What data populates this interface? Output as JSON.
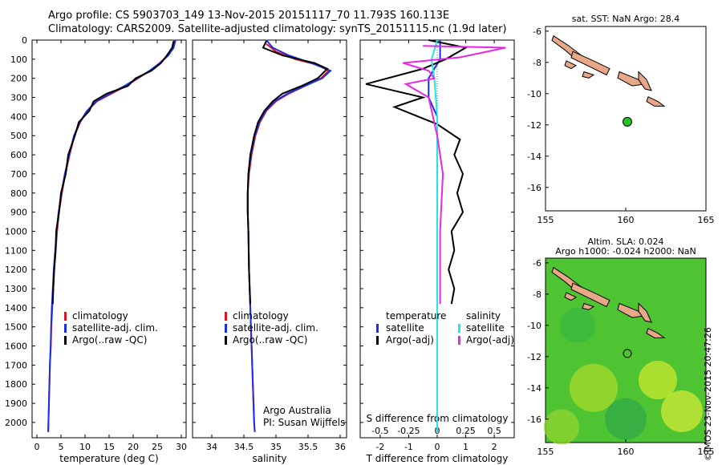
{
  "header": {
    "line1": "Argo profile: CS 5903703_149 13-Nov-2015 20151117_70 11.793S 160.113E",
    "line2": "Climatology: CARS2009. Satellite-adjusted climatology: synTS_20151115.nc (1.9d later)"
  },
  "credit": "©IMOS 23-Nov-2015 20:47:26",
  "colors": {
    "climatology": "#e0141e",
    "satellite": "#1a2ee6",
    "argo": "#000000",
    "sal_sat": "#22e6e6",
    "sal_argo": "#e628e6",
    "land": "#e8a888",
    "float": "#22c322"
  },
  "chart_data": [
    {
      "id": "temperature",
      "type": "line",
      "xlabel": "temperature (deg C)",
      "ylabel": "",
      "xlim": [
        -1,
        31
      ],
      "ylim": [
        2080,
        0
      ],
      "xticks": [
        0,
        5,
        10,
        15,
        20,
        25,
        30
      ],
      "yticks": [
        0,
        100,
        200,
        300,
        400,
        500,
        600,
        700,
        800,
        900,
        1000,
        1100,
        1200,
        1300,
        1400,
        1500,
        1600,
        1700,
        1800,
        1900,
        2000
      ],
      "legend": [
        "climatology",
        "satellite-adj. clim.",
        "Argo(..raw -QC)"
      ],
      "series": [
        {
          "name": "climatology",
          "color": "#e0141e",
          "points": [
            [
              28.6,
              0
            ],
            [
              28.3,
              40
            ],
            [
              27.2,
              80
            ],
            [
              25.5,
              120
            ],
            [
              23.5,
              160
            ],
            [
              21.0,
              200
            ],
            [
              18.5,
              240
            ],
            [
              15.5,
              280
            ],
            [
              12.5,
              320
            ],
            [
              10.5,
              370
            ],
            [
              9.0,
              430
            ],
            [
              7.8,
              500
            ],
            [
              6.8,
              600
            ],
            [
              5.9,
              700
            ],
            [
              5.2,
              800
            ],
            [
              4.6,
              900
            ],
            [
              4.2,
              1000
            ],
            [
              3.9,
              1100
            ],
            [
              3.6,
              1200
            ],
            [
              3.4,
              1300
            ],
            [
              3.2,
              1400
            ],
            [
              3.0,
              1500
            ],
            [
              2.9,
              1600
            ],
            [
              2.7,
              1700
            ],
            [
              2.6,
              1800
            ],
            [
              2.5,
              1900
            ],
            [
              2.4,
              2000
            ],
            [
              2.35,
              2050
            ]
          ]
        },
        {
          "name": "satellite-adj. clim.",
          "color": "#1a2ee6",
          "points": [
            [
              28.8,
              0
            ],
            [
              28.4,
              40
            ],
            [
              27.3,
              80
            ],
            [
              25.6,
              120
            ],
            [
              23.4,
              160
            ],
            [
              20.8,
              200
            ],
            [
              18.2,
              240
            ],
            [
              15.2,
              280
            ],
            [
              12.3,
              320
            ],
            [
              10.4,
              370
            ],
            [
              8.9,
              430
            ],
            [
              7.7,
              500
            ],
            [
              6.7,
              600
            ],
            [
              5.8,
              700
            ],
            [
              5.1,
              800
            ],
            [
              4.5,
              900
            ],
            [
              4.1,
              1000
            ],
            [
              3.8,
              1100
            ],
            [
              3.5,
              1200
            ],
            [
              3.3,
              1300
            ],
            [
              3.1,
              1400
            ],
            [
              2.95,
              1500
            ],
            [
              2.85,
              1600
            ],
            [
              2.7,
              1700
            ],
            [
              2.6,
              1800
            ],
            [
              2.5,
              1900
            ],
            [
              2.4,
              2000
            ],
            [
              2.35,
              2050
            ]
          ]
        },
        {
          "name": "Argo(..raw -QC)",
          "color": "#000000",
          "points": [
            [
              28.4,
              5
            ],
            [
              28.1,
              40
            ],
            [
              27.0,
              80
            ],
            [
              25.8,
              120
            ],
            [
              23.8,
              160
            ],
            [
              20.5,
              200
            ],
            [
              18.9,
              240
            ],
            [
              14.5,
              280
            ],
            [
              11.8,
              320
            ],
            [
              10.9,
              370
            ],
            [
              8.7,
              430
            ],
            [
              7.9,
              500
            ],
            [
              6.5,
              600
            ],
            [
              6.0,
              700
            ],
            [
              5.0,
              800
            ],
            [
              4.6,
              900
            ],
            [
              4.0,
              1000
            ],
            [
              3.9,
              1100
            ],
            [
              3.6,
              1200
            ],
            [
              3.4,
              1300
            ],
            [
              3.3,
              1380
            ]
          ]
        }
      ]
    },
    {
      "id": "salinity",
      "type": "line",
      "xlabel": "salinity",
      "ylabel": "",
      "xlim": [
        33.7,
        36.1
      ],
      "ylim": [
        2080,
        0
      ],
      "xticks": [
        34,
        34.5,
        35,
        35.5,
        36
      ],
      "legend": [
        "climatology",
        "satellite-adj. clim.",
        "Argo(..raw -QC)"
      ],
      "annotation": [
        "Argo Australia",
        "PI: Susan Wijffels"
      ],
      "series": [
        {
          "name": "climatology",
          "color": "#e0141e",
          "points": [
            [
              34.85,
              20
            ],
            [
              35.0,
              60
            ],
            [
              35.3,
              100
            ],
            [
              35.65,
              130
            ],
            [
              35.82,
              160
            ],
            [
              35.7,
              200
            ],
            [
              35.45,
              240
            ],
            [
              35.2,
              280
            ],
            [
              35.0,
              320
            ],
            [
              34.85,
              370
            ],
            [
              34.75,
              430
            ],
            [
              34.68,
              500
            ],
            [
              34.62,
              600
            ],
            [
              34.58,
              700
            ],
            [
              34.56,
              800
            ],
            [
              34.56,
              900
            ],
            [
              34.57,
              1000
            ],
            [
              34.58,
              1200
            ],
            [
              34.6,
              1400
            ],
            [
              34.62,
              1600
            ],
            [
              34.64,
              1800
            ],
            [
              34.66,
              2000
            ],
            [
              34.67,
              2050
            ]
          ]
        },
        {
          "name": "satellite-adj. clim.",
          "color": "#1a2ee6",
          "points": [
            [
              34.85,
              0
            ],
            [
              34.95,
              40
            ],
            [
              35.2,
              80
            ],
            [
              35.55,
              120
            ],
            [
              35.85,
              160
            ],
            [
              35.72,
              200
            ],
            [
              35.45,
              240
            ],
            [
              35.18,
              280
            ],
            [
              34.98,
              320
            ],
            [
              34.84,
              370
            ],
            [
              34.74,
              430
            ],
            [
              34.67,
              500
            ],
            [
              34.61,
              600
            ],
            [
              34.57,
              700
            ],
            [
              34.56,
              800
            ],
            [
              34.56,
              900
            ],
            [
              34.57,
              1000
            ],
            [
              34.58,
              1200
            ],
            [
              34.6,
              1400
            ],
            [
              34.62,
              1600
            ],
            [
              34.64,
              1800
            ],
            [
              34.66,
              2000
            ],
            [
              34.67,
              2050
            ]
          ]
        },
        {
          "name": "Argo(..raw -QC)",
          "color": "#000000",
          "points": [
            [
              34.85,
              5
            ],
            [
              34.8,
              40
            ],
            [
              35.1,
              80
            ],
            [
              35.6,
              120
            ],
            [
              35.8,
              150
            ],
            [
              35.65,
              200
            ],
            [
              35.4,
              240
            ],
            [
              35.1,
              280
            ],
            [
              34.95,
              320
            ],
            [
              34.82,
              370
            ],
            [
              34.72,
              430
            ],
            [
              34.66,
              500
            ],
            [
              34.6,
              600
            ],
            [
              34.57,
              700
            ],
            [
              34.56,
              800
            ],
            [
              34.56,
              900
            ],
            [
              34.57,
              1000
            ],
            [
              34.58,
              1200
            ],
            [
              34.6,
              1380
            ]
          ]
        }
      ]
    },
    {
      "id": "difference",
      "type": "line",
      "xlabel": "T difference from climatology",
      "xlabel2": "S difference from climatology",
      "xlim": [
        -2.7,
        2.7
      ],
      "ylim": [
        2080,
        0
      ],
      "xticks": [
        -2,
        -1,
        0,
        1,
        2
      ],
      "xticks2": [
        "-0.5",
        "-0.25",
        "0",
        "0.25",
        "0.5"
      ],
      "legend_left": [
        "temperature",
        "satellite",
        "Argo(-adj)"
      ],
      "legend_right": [
        "salinity",
        "satellite",
        "Argo(-adj)"
      ],
      "series": [
        {
          "name": "satellite",
          "color": "#1a2ee6",
          "points": [
            [
              0.1,
              0
            ],
            [
              0.1,
              100
            ],
            [
              -0.3,
              200
            ],
            [
              -0.3,
              300
            ],
            [
              0,
              400
            ],
            [
              0,
              600
            ],
            [
              0,
              1000
            ],
            [
              0,
              2050
            ]
          ]
        },
        {
          "name": "Argo(-adj)",
          "color": "#000000",
          "points": [
            [
              -0.3,
              0
            ],
            [
              1.0,
              40
            ],
            [
              0.3,
              100
            ],
            [
              -0.5,
              150
            ],
            [
              -2.5,
              230
            ],
            [
              -0.5,
              300
            ],
            [
              -1.5,
              350
            ],
            [
              0,
              440
            ],
            [
              0.8,
              520
            ],
            [
              0.6,
              600
            ],
            [
              0.9,
              700
            ],
            [
              0.7,
              800
            ],
            [
              0.9,
              900
            ],
            [
              0.5,
              1000
            ],
            [
              0.6,
              1100
            ],
            [
              0.4,
              1200
            ],
            [
              0.6,
              1300
            ],
            [
              0.5,
              1380
            ]
          ]
        },
        {
          "name": "sal-satellite",
          "color": "#22e6e6",
          "points": [
            [
              0,
              0
            ],
            [
              -0.2,
              100
            ],
            [
              -0.1,
              200
            ],
            [
              -0.05,
              300
            ],
            [
              0,
              400
            ],
            [
              0,
              600
            ],
            [
              0,
              1000
            ],
            [
              0,
              1500
            ],
            [
              0,
              2050
            ]
          ]
        },
        {
          "name": "sal-Argo(-adj)",
          "color": "#e628e6",
          "points": [
            [
              -0.5,
              30
            ],
            [
              2.4,
              40
            ],
            [
              0.8,
              90
            ],
            [
              -1.2,
              120
            ],
            [
              -0.3,
              160
            ],
            [
              -0.1,
              200
            ],
            [
              -1.1,
              230
            ],
            [
              -0.3,
              300
            ],
            [
              0,
              500
            ],
            [
              0.2,
              700
            ],
            [
              0.1,
              1000
            ],
            [
              0.1,
              1380
            ]
          ]
        }
      ]
    }
  ],
  "maps": [
    {
      "id": "sst-map",
      "title1": "sat. SST: NaN Argo: 28.4",
      "title2": "",
      "xlim": [
        155,
        165
      ],
      "ylim": [
        -17.5,
        -5.7
      ],
      "xticks": [
        "155",
        "160",
        "165"
      ],
      "yticks": [
        "-6",
        "-8",
        "-10",
        "-12",
        "-14",
        "-16"
      ],
      "float": [
        160.1,
        -11.8
      ]
    },
    {
      "id": "sla-map",
      "title1": "Altim. SLA: 0.024",
      "title2": "Argo h1000: -0.024 h2000: NaN",
      "xlim": [
        155,
        165
      ],
      "ylim": [
        -17.5,
        -5.7
      ],
      "xticks": [
        "155",
        "160",
        "165"
      ],
      "yticks": [
        "-6",
        "-8",
        "-10",
        "-12",
        "-14",
        "-16"
      ],
      "float": [
        160.1,
        -11.8
      ]
    }
  ]
}
